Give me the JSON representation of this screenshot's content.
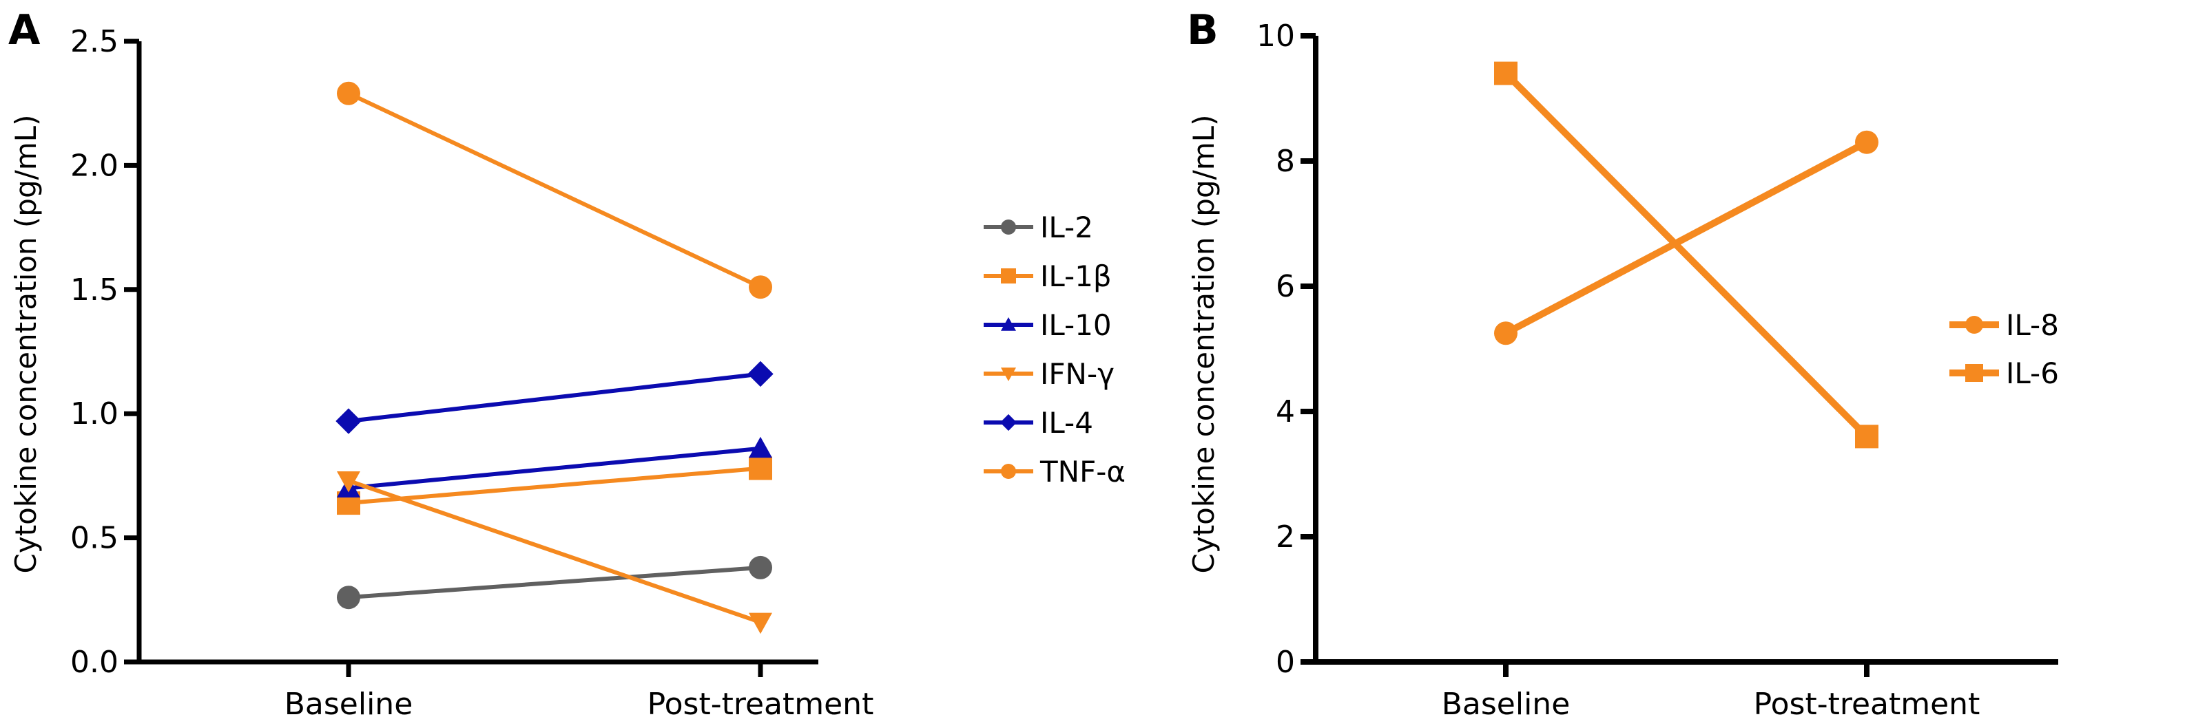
{
  "chart_data": [
    {
      "panel_label": "A",
      "type": "line",
      "categories": [
        "Baseline",
        "Post-treatment"
      ],
      "ylabel": "Cytokine concentration (pg/mL)",
      "ylim": [
        0,
        2.5
      ],
      "yticks": [
        "0.0",
        "0.5",
        "1.0",
        "1.5",
        "2.0",
        "2.5"
      ],
      "grid": false,
      "legend_position": "right",
      "series": [
        {
          "name": "IL-2",
          "values": [
            0.26,
            0.38
          ],
          "color": "#606060",
          "marker": "circle"
        },
        {
          "name": "IL-1β",
          "values": [
            0.64,
            0.78
          ],
          "color": "#f5891f",
          "marker": "square"
        },
        {
          "name": "IL-10",
          "values": [
            0.7,
            0.86
          ],
          "color": "#0b0bb0",
          "marker": "triangle-up"
        },
        {
          "name": "IFN-γ",
          "values": [
            0.73,
            0.16
          ],
          "color": "#f5891f",
          "marker": "triangle-down"
        },
        {
          "name": "IL-4",
          "values": [
            0.97,
            1.16
          ],
          "color": "#0b0bb0",
          "marker": "diamond"
        },
        {
          "name": "TNF-α",
          "values": [
            2.29,
            1.51
          ],
          "color": "#f5891f",
          "marker": "circle"
        }
      ]
    },
    {
      "panel_label": "B",
      "type": "line",
      "categories": [
        "Baseline",
        "Post-treatment"
      ],
      "ylabel": "Cytokine concentration (pg/mL)",
      "ylim": [
        0,
        10
      ],
      "yticks": [
        "0",
        "2",
        "4",
        "6",
        "8",
        "10"
      ],
      "grid": false,
      "legend_position": "right",
      "series": [
        {
          "name": "IL-8",
          "values": [
            5.25,
            8.3
          ],
          "color": "#f5891f",
          "marker": "circle"
        },
        {
          "name": "IL-6",
          "values": [
            9.4,
            3.6
          ],
          "color": "#f5891f",
          "marker": "square"
        }
      ]
    }
  ]
}
